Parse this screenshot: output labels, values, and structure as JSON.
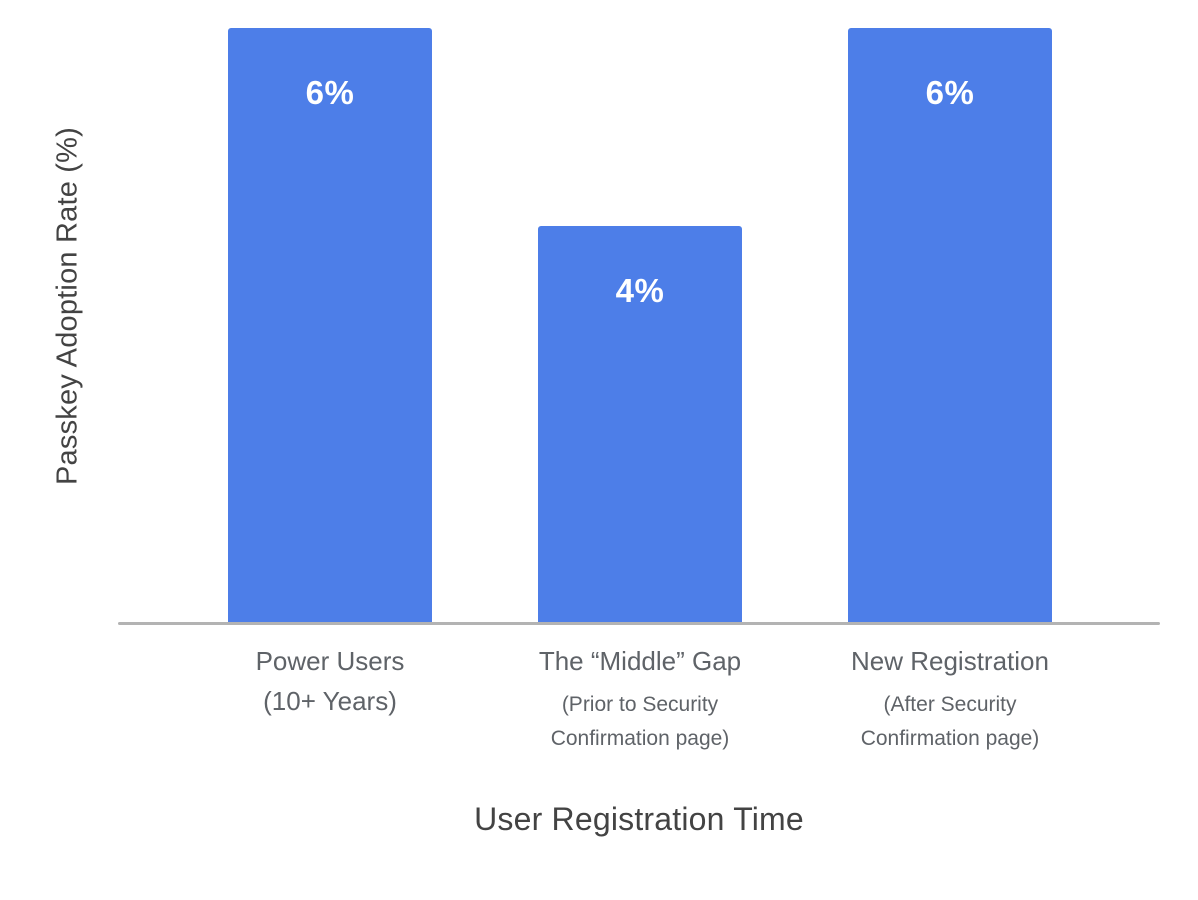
{
  "chart_data": {
    "type": "bar",
    "title": "",
    "xlabel": "User Registration Time",
    "ylabel": "Passkey Adoption Rate (%)",
    "ylim": [
      0,
      6
    ],
    "grid": false,
    "legend": false,
    "bar_color": "#4D7EE8",
    "axis_line_color": "#B3B3B3",
    "value_label_color": "#FFFFFF",
    "values": [
      6,
      4,
      6
    ],
    "value_labels": [
      "6%",
      "4%",
      "6%"
    ],
    "categories": [
      {
        "label": "Power Users",
        "sublabel": "(10+ Years)",
        "sublabel_small": false
      },
      {
        "label": "The “Middle” Gap",
        "sublabel": "(Prior to Security Confirmation page)",
        "sublabel_small": true
      },
      {
        "label": "New Registration",
        "sublabel": "(After Security Confirmation page)",
        "sublabel_small": true
      }
    ]
  }
}
